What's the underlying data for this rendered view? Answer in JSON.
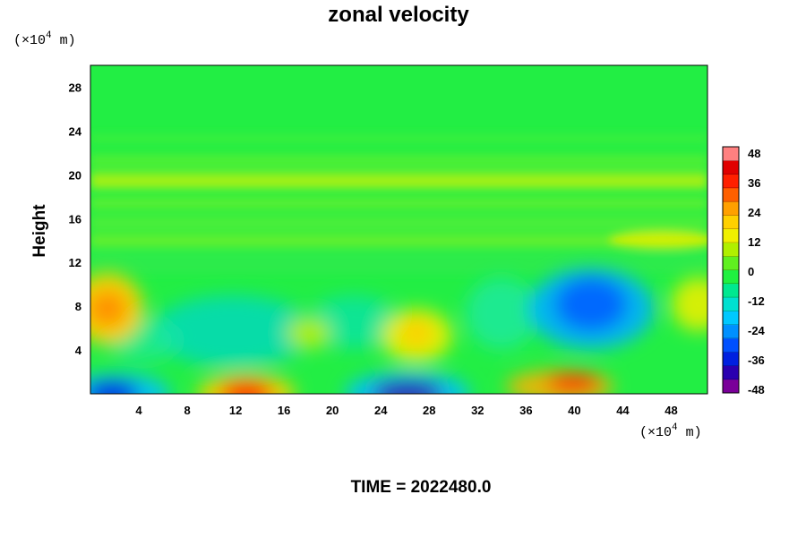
{
  "chart_data": {
    "type": "heatmap",
    "title": "zonal velocity",
    "ylabel": "Height",
    "xlabel": "",
    "x_unit_prefix": "(×10",
    "x_unit_exp": "4",
    "x_unit_suffix": " m)",
    "y_unit_prefix": "(×10",
    "y_unit_exp": "4",
    "y_unit_suffix": " m)",
    "xlim": [
      0,
      51
    ],
    "ylim": [
      0,
      30
    ],
    "x_ticks": [
      "4",
      "8",
      "12",
      "16",
      "20",
      "24",
      "28",
      "32",
      "36",
      "40",
      "44",
      "48"
    ],
    "y_ticks": [
      "4",
      "8",
      "12",
      "16",
      "20",
      "24",
      "28"
    ],
    "colorbar": {
      "range": [
        -48,
        48
      ],
      "ticks": [
        "48",
        "36",
        "24",
        "12",
        "0",
        "-12",
        "-24",
        "-36",
        "-48"
      ],
      "colors": [
        "#7a0099",
        "#2a00b0",
        "#0020e0",
        "#0050ff",
        "#0090ff",
        "#00c8ff",
        "#00e0d0",
        "#00e890",
        "#20f040",
        "#60f020",
        "#b0f000",
        "#f0f000",
        "#ffd000",
        "#ffa000",
        "#ff6000",
        "#ff2000",
        "#e00000",
        "#ff8080"
      ]
    },
    "features": [
      {
        "x": 2,
        "y": 8,
        "value": 22
      },
      {
        "x": 13,
        "y": 0.5,
        "value": 44
      },
      {
        "x": 1.5,
        "y": 0.5,
        "value": -40
      },
      {
        "x": 26.5,
        "y": 0.5,
        "value": -44
      },
      {
        "x": 40,
        "y": 1,
        "value": 42
      },
      {
        "x": 41,
        "y": 7,
        "value": -26
      },
      {
        "x": 27,
        "y": 5,
        "value": 16
      },
      {
        "x": 20,
        "y": 5,
        "value": 12
      },
      {
        "x": 12,
        "y": 5,
        "value": -10
      },
      {
        "x": 33,
        "y": 7,
        "value": -6
      },
      {
        "x": 48,
        "y": 8,
        "value": 14
      },
      {
        "x": 45,
        "y": 14,
        "value": 14
      },
      {
        "x": 30,
        "y": 19,
        "value": 10
      },
      {
        "x": 25,
        "y": 22,
        "value": 2
      }
    ],
    "background_value": -4
  },
  "footer": {
    "time_label": "TIME = 2022480.0"
  }
}
